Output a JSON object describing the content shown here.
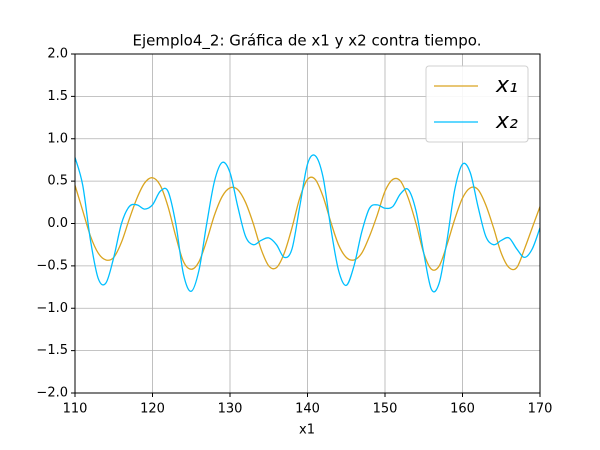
{
  "chart_data": {
    "type": "line",
    "title": "Ejemplo4_2: Gráfica de x1 y x2 contra tiempo.",
    "x_label": "x1",
    "x": [
      110,
      111,
      112,
      113,
      114,
      115,
      116,
      117,
      118,
      119,
      120,
      121,
      122,
      123,
      124,
      125,
      126,
      127,
      128,
      129,
      130,
      131,
      132,
      133,
      134,
      135,
      136,
      137,
      138,
      139,
      140,
      141,
      142,
      143,
      144,
      145,
      146,
      147,
      148,
      149,
      150,
      151,
      152,
      153,
      154,
      155,
      156,
      157,
      158,
      159,
      160,
      161,
      162,
      163,
      164,
      165,
      166,
      167,
      168,
      169,
      170
    ],
    "series": [
      {
        "name": "x₁",
        "color": "#daa520",
        "values": [
          0.45,
          0.15,
          -0.15,
          -0.35,
          -0.43,
          -0.4,
          -0.22,
          0.05,
          0.3,
          0.48,
          0.54,
          0.45,
          0.2,
          -0.15,
          -0.45,
          -0.54,
          -0.45,
          -0.2,
          0.1,
          0.32,
          0.42,
          0.4,
          0.25,
          0.0,
          -0.3,
          -0.5,
          -0.52,
          -0.35,
          -0.05,
          0.3,
          0.52,
          0.52,
          0.32,
          0.02,
          -0.25,
          -0.4,
          -0.43,
          -0.35,
          -0.15,
          0.1,
          0.38,
          0.52,
          0.5,
          0.3,
          0.0,
          -0.35,
          -0.54,
          -0.5,
          -0.25,
          0.05,
          0.3,
          0.42,
          0.4,
          0.22,
          -0.05,
          -0.35,
          -0.52,
          -0.52,
          -0.3,
          -0.05,
          0.2
        ]
      },
      {
        "name": "x₂",
        "color": "#00bfff",
        "values": [
          0.78,
          0.45,
          -0.2,
          -0.65,
          -0.7,
          -0.4,
          0.0,
          0.2,
          0.22,
          0.17,
          0.22,
          0.38,
          0.38,
          0.0,
          -0.6,
          -0.8,
          -0.55,
          0.0,
          0.5,
          0.72,
          0.6,
          0.2,
          -0.15,
          -0.25,
          -0.2,
          -0.17,
          -0.25,
          -0.4,
          -0.3,
          0.2,
          0.7,
          0.8,
          0.55,
          -0.05,
          -0.55,
          -0.73,
          -0.5,
          -0.1,
          0.18,
          0.22,
          0.18,
          0.2,
          0.35,
          0.4,
          0.15,
          -0.35,
          -0.78,
          -0.7,
          -0.2,
          0.4,
          0.7,
          0.6,
          0.2,
          -0.15,
          -0.25,
          -0.2,
          -0.17,
          -0.3,
          -0.4,
          -0.3,
          -0.05
        ]
      }
    ],
    "xlim": [
      110,
      170
    ],
    "xticks": [
      110,
      120,
      130,
      140,
      150,
      160,
      170
    ],
    "ylim": [
      -2,
      2
    ],
    "yticks": [
      {
        "value": -2,
        "label": "−2.0"
      },
      {
        "value": -1.5,
        "label": "−1.5"
      },
      {
        "value": -1,
        "label": "−1.0"
      },
      {
        "value": -0.5,
        "label": "−0.5"
      },
      {
        "value": 0,
        "label": "0.0"
      },
      {
        "value": 0.5,
        "label": "0.5"
      },
      {
        "value": 1,
        "label": "1.0"
      },
      {
        "value": 1.5,
        "label": "1.5"
      },
      {
        "value": 2,
        "label": "2.0"
      }
    ],
    "grid": true,
    "legend": "upper right"
  }
}
